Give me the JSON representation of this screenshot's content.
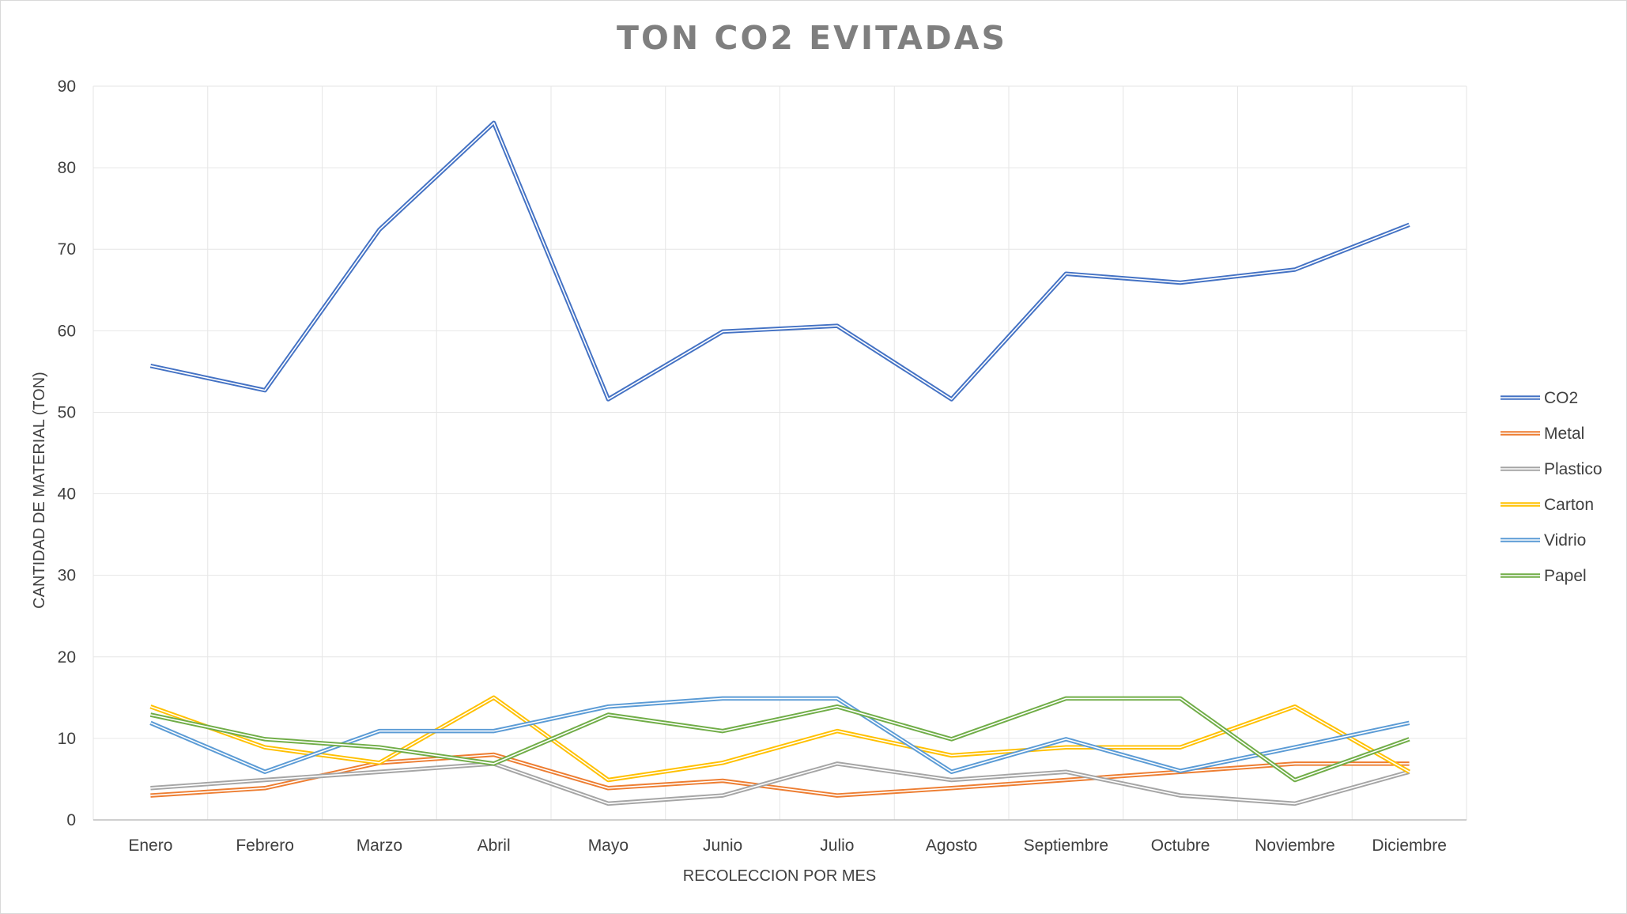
{
  "chart_data": {
    "type": "line",
    "title": "TON CO2 EVITADAS",
    "xlabel": "RECOLECCION POR MES",
    "ylabel": "CANTIDAD DE MATERIAL (TON)",
    "categories": [
      "Enero",
      "Febrero",
      "Marzo",
      "Abril",
      "Mayo",
      "Junio",
      "Julio",
      "Agosto",
      "Septiembre",
      "Octubre",
      "Noviembre",
      "Diciembre"
    ],
    "ylim": [
      0,
      90
    ],
    "yticks": [
      0,
      10,
      20,
      30,
      40,
      50,
      60,
      70,
      80,
      90
    ],
    "grid": true,
    "legend_position": "right",
    "series": [
      {
        "name": "CO2",
        "color": "#4472c4",
        "values": [
          55.7,
          52.7,
          72.4,
          85.5,
          51.6,
          59.9,
          60.6,
          51.6,
          67.0,
          65.9,
          67.5,
          73.0
        ]
      },
      {
        "name": "Metal",
        "color": "#ed7d31",
        "values": [
          3.0,
          3.9,
          7.0,
          8.0,
          3.9,
          4.8,
          3.0,
          3.9,
          4.9,
          5.9,
          6.9,
          6.9
        ]
      },
      {
        "name": "Plastico",
        "color": "#a5a5a5",
        "values": [
          3.9,
          4.9,
          5.9,
          6.9,
          2.0,
          3.0,
          6.9,
          4.9,
          5.9,
          3.0,
          2.0,
          5.9
        ]
      },
      {
        "name": "Carton",
        "color": "#ffc000",
        "values": [
          13.9,
          8.9,
          7.0,
          15.0,
          4.9,
          7.0,
          10.9,
          7.9,
          8.9,
          8.9,
          13.9,
          5.9
        ]
      },
      {
        "name": "Vidrio",
        "color": "#5b9bd5",
        "values": [
          11.9,
          5.9,
          10.9,
          10.9,
          13.9,
          14.9,
          14.9,
          5.9,
          9.9,
          6.0,
          8.9,
          11.9
        ]
      },
      {
        "name": "Papel",
        "color": "#70ad47",
        "values": [
          12.9,
          9.9,
          8.9,
          6.9,
          12.9,
          10.9,
          13.9,
          9.9,
          14.9,
          14.9,
          4.9,
          9.9
        ]
      }
    ]
  }
}
